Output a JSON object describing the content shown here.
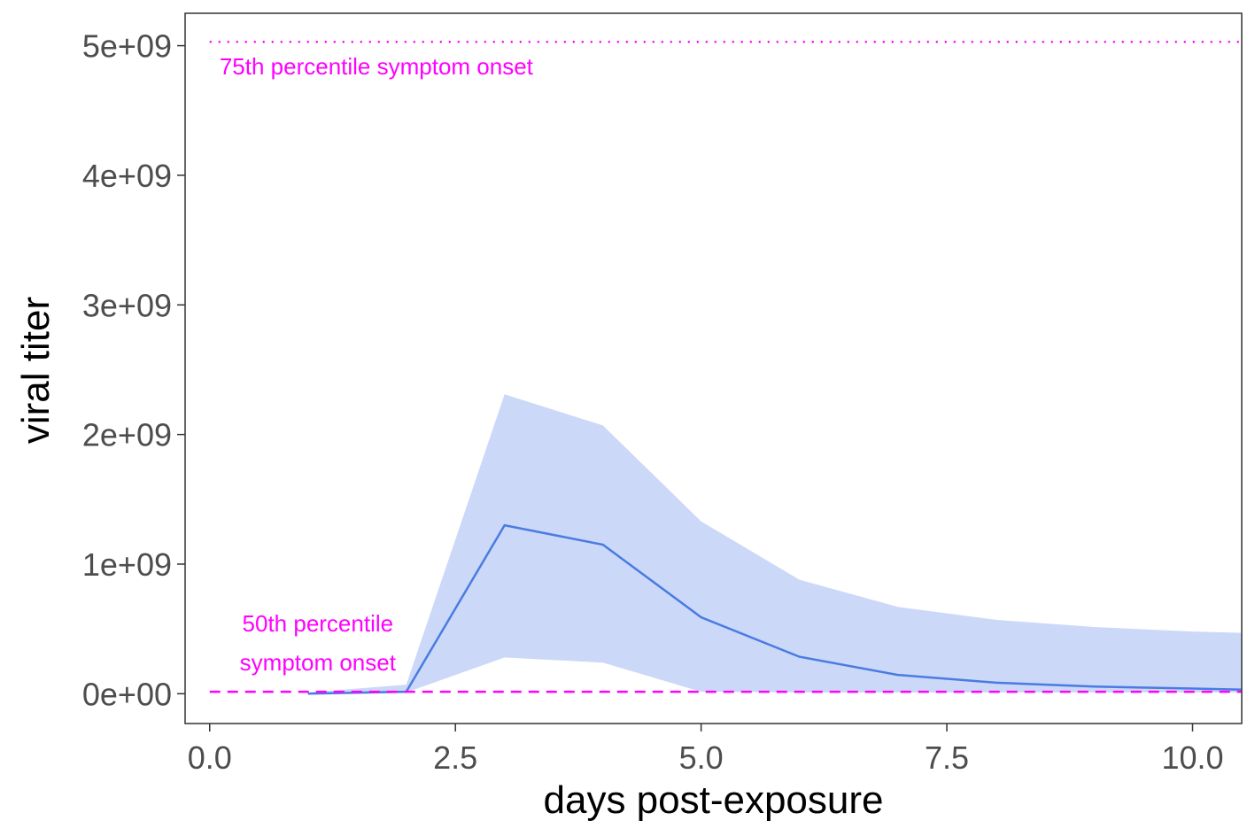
{
  "chart_data": {
    "type": "line",
    "xlabel": "days post-exposure",
    "ylabel": "viral titer",
    "xlim": [
      -0.25,
      10.5
    ],
    "ylim": [
      -230000000,
      5250000000
    ],
    "x_ticks": [
      0,
      2.5,
      5,
      7.5,
      10
    ],
    "x_tick_labels": [
      "0.0",
      "2.5",
      "5.0",
      "7.5",
      "10.0"
    ],
    "y_ticks": [
      0,
      1000000000,
      2000000000,
      3000000000,
      4000000000,
      5000000000
    ],
    "y_tick_labels": [
      "0e+00",
      "1e+09",
      "2e+09",
      "3e+09",
      "4e+09",
      "5e+09"
    ],
    "grid": false,
    "series": [
      {
        "x": [
          1,
          2,
          3,
          4,
          5,
          6,
          7,
          8,
          9,
          10,
          10.5
        ],
        "y": [
          0,
          15000000,
          1300000000,
          1150000000,
          590000000,
          285000000,
          145000000,
          85000000,
          55000000,
          40000000,
          32000000
        ],
        "lower": [
          0,
          10000000,
          280000000,
          240000000,
          15000000,
          10000000,
          10000000,
          10000000,
          10000000,
          10000000,
          10000000
        ],
        "upper": [
          10000000,
          70000000,
          2310000000,
          2070000000,
          1330000000,
          880000000,
          670000000,
          570000000,
          515000000,
          480000000,
          470000000
        ],
        "color": "#4a7be2",
        "band_color": "#cbd8f7"
      }
    ],
    "reference_lines": [
      {
        "y": 5030000000,
        "style": "dotted",
        "color": "#ff00ff"
      },
      {
        "y": 15000000,
        "style": "dashed",
        "color": "#ff00ff"
      }
    ],
    "annotations": [
      {
        "lines": [
          "75th percentile symptom onset"
        ],
        "x": 0.1,
        "y": 4780000000,
        "anchor": "start",
        "color": "#ff00ff"
      },
      {
        "lines": [
          "50th percentile",
          "symptom onset"
        ],
        "x": 1.1,
        "y": 480000000,
        "anchor": "middle",
        "color": "#ff00ff"
      }
    ]
  }
}
